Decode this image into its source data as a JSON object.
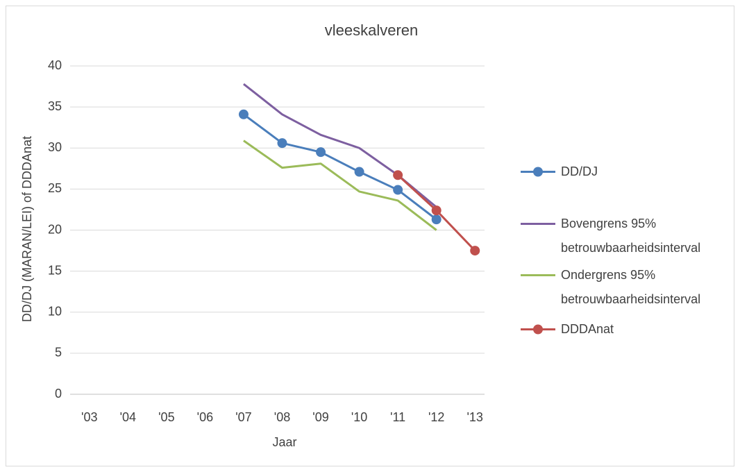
{
  "chart_data": {
    "type": "line",
    "title": "vleeskalveren",
    "x_label": "Jaar",
    "y_label": "DD/DJ (MARAN/LEI) of DDDAnat",
    "categories": [
      "'03",
      "'04",
      "'05",
      "'06",
      "'07",
      "'08",
      "'09",
      "'10",
      "'11",
      "'12",
      "'13"
    ],
    "series": [
      {
        "name": "DD/DJ",
        "color": "#4a7ebb",
        "marker": true,
        "values": [
          null,
          null,
          null,
          null,
          34.1,
          30.6,
          29.5,
          27.1,
          24.9,
          21.3,
          null
        ]
      },
      {
        "name": "Bovengrens 95% betrouwbaarheidsinterval",
        "color": "#7d5fa0",
        "marker": false,
        "values": [
          null,
          null,
          null,
          null,
          37.8,
          34.1,
          31.6,
          30.0,
          26.7,
          22.8,
          null
        ]
      },
      {
        "name": "Ondergrens 95% betrouwbaarheidsinterval",
        "color": "#9bbb59",
        "marker": false,
        "values": [
          null,
          null,
          null,
          null,
          30.9,
          27.6,
          28.1,
          24.7,
          23.6,
          20.0,
          null
        ]
      },
      {
        "name": "DDDAnat",
        "color": "#c0504d",
        "marker": true,
        "values": [
          null,
          null,
          null,
          null,
          null,
          null,
          null,
          null,
          26.7,
          22.4,
          17.5
        ]
      }
    ],
    "ylim": [
      0,
      40
    ],
    "yticks": [
      0,
      5,
      10,
      15,
      20,
      25,
      30,
      35,
      40
    ],
    "grid": true,
    "legend": "right"
  }
}
